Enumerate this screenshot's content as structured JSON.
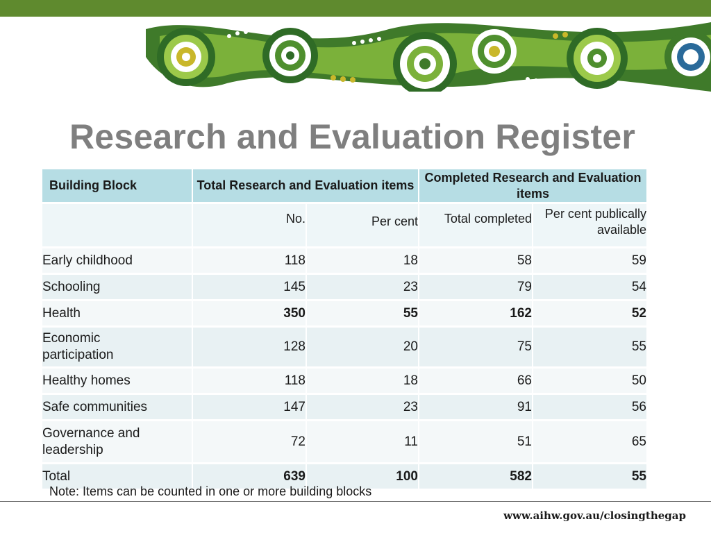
{
  "title": "Research and Evaluation Register",
  "table": {
    "headers": {
      "building_block": "Building Block",
      "total_group": "Total Research and Evaluation items",
      "completed_group": "Completed Research and Evaluation items"
    },
    "subheaders": {
      "no": "No.",
      "per_cent": "Per cent",
      "total_completed": "Total completed",
      "per_cent_public": "Per cent publically available"
    },
    "rows": [
      {
        "label": "Early childhood",
        "no": "118",
        "per_cent": "18",
        "total_completed": "58",
        "per_cent_public": "59",
        "bold": false
      },
      {
        "label": "Schooling",
        "no": "145",
        "per_cent": "23",
        "total_completed": "79",
        "per_cent_public": "54",
        "bold": false
      },
      {
        "label": "Health",
        "no": "350",
        "per_cent": "55",
        "total_completed": "162",
        "per_cent_public": "52",
        "bold": true
      },
      {
        "label": "Economic participation",
        "no": "128",
        "per_cent": "20",
        "total_completed": "75",
        "per_cent_public": "55",
        "bold": false
      },
      {
        "label": "Healthy homes",
        "no": "118",
        "per_cent": "18",
        "total_completed": "66",
        "per_cent_public": "50",
        "bold": false
      },
      {
        "label": "Safe communities",
        "no": "147",
        "per_cent": "23",
        "total_completed": "91",
        "per_cent_public": "56",
        "bold": false
      },
      {
        "label": "Governance and leadership",
        "no": "72",
        "per_cent": "11",
        "total_completed": "51",
        "per_cent_public": "65",
        "bold": false
      },
      {
        "label": "Total",
        "no": "639",
        "per_cent": "100",
        "total_completed": "582",
        "per_cent_public": "55",
        "bold": true
      }
    ]
  },
  "note": "Note: Items can be counted in one or more building blocks",
  "footer_url": "www.aihw.gov.au/closingthegap",
  "colors": {
    "header_bg": "#b6dde4",
    "title": "#7f7f7f",
    "banner_green": "#5f8a2e"
  }
}
